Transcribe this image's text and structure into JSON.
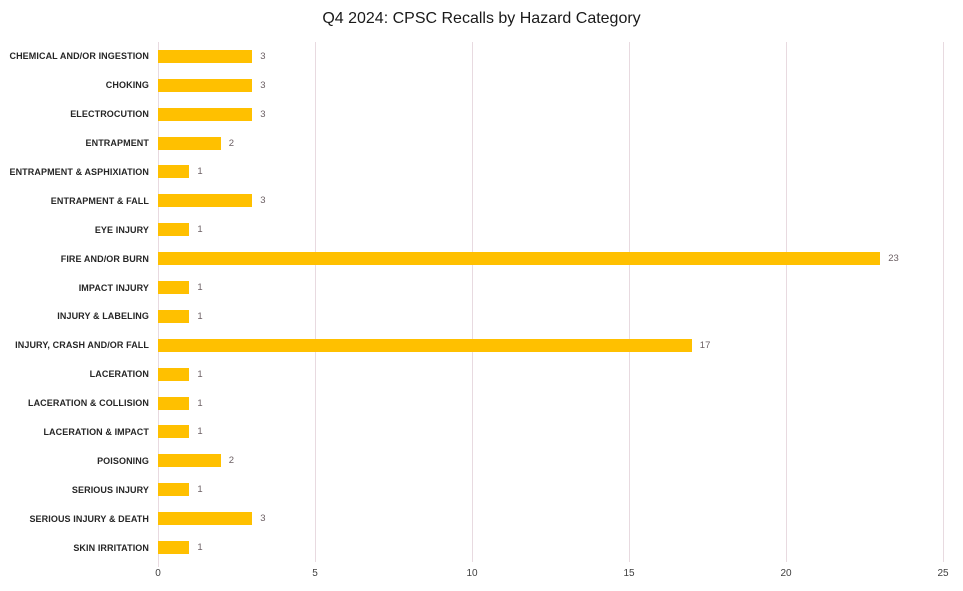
{
  "title": "Q4 2024: CPSC Recalls by Hazard Category",
  "colors": {
    "background": "#FFFFFF",
    "bar": "#FFC000",
    "gridline": "#E8DAE0",
    "title": "#1A1A1A",
    "category_label": "#262626",
    "value_label": "#6B5F63",
    "axis_label": "#3F3F3F"
  },
  "chart_data": {
    "type": "bar",
    "orientation": "horizontal",
    "title": "Q4 2024: CPSC Recalls by Hazard Category",
    "xlabel": "",
    "ylabel": "",
    "xlim": [
      0,
      25
    ],
    "x_ticks": [
      "0",
      "5",
      "10",
      "15",
      "20",
      "25"
    ],
    "grid": true,
    "legend": false,
    "data_labels": true,
    "categories": [
      "CHEMICAL AND/OR INGESTION",
      "CHOKING",
      "ELECTROCUTION",
      "ENTRAPMENT",
      "ENTRAPMENT & ASPHIXIATION",
      "ENTRAPMENT & FALL",
      "EYE INJURY",
      "FIRE AND/OR BURN",
      "IMPACT INJURY",
      "INJURY & LABELING",
      "INJURY, CRASH AND/OR FALL",
      "LACERATION",
      "LACERATION & COLLISION",
      "LACERATION & IMPACT",
      "POISONING",
      "SERIOUS INJURY",
      "SERIOUS INJURY & DEATH",
      "SKIN IRRITATION"
    ],
    "values": [
      3,
      3,
      3,
      2,
      1,
      3,
      1,
      23,
      1,
      1,
      17,
      1,
      1,
      1,
      2,
      1,
      3,
      1
    ]
  }
}
